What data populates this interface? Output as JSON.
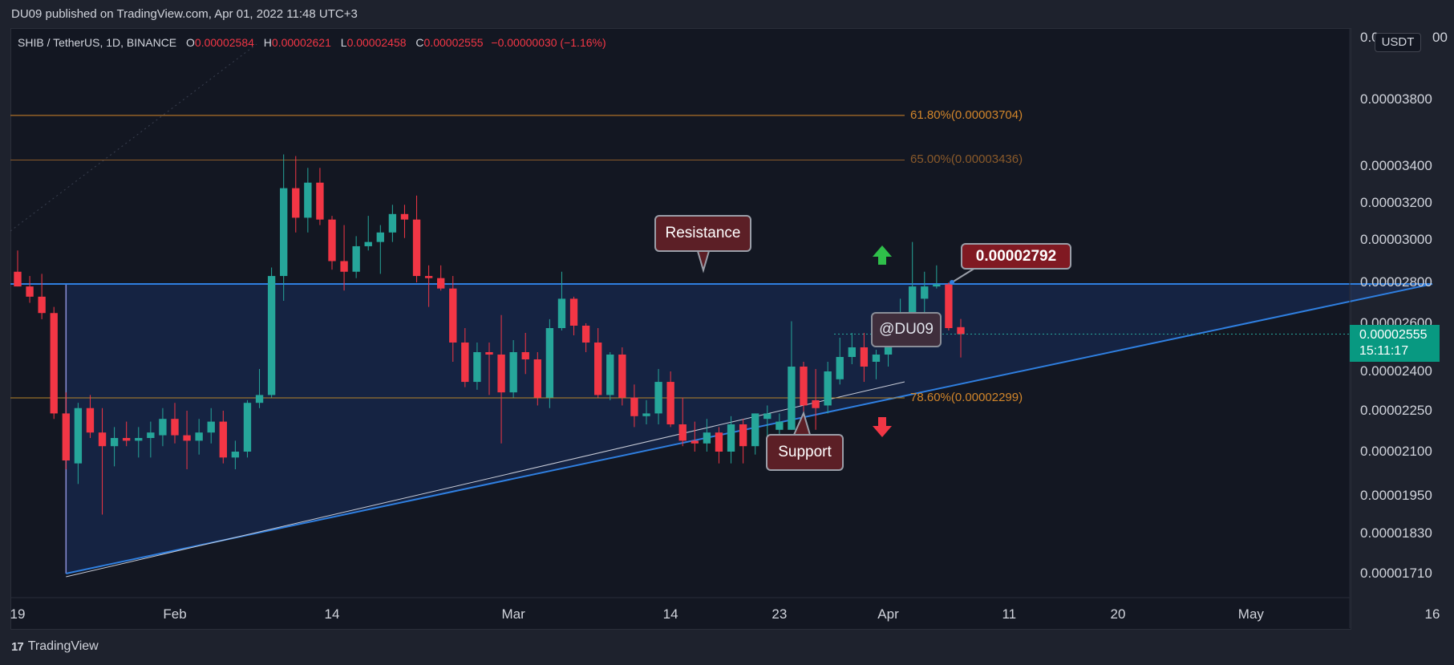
{
  "header": {
    "publisher": "DU09 published on TradingView.com, Apr 01, 2022 11:48 UTC+3"
  },
  "legend": {
    "symbol": "SHIB / TetherUS, 1D, BINANCE",
    "o_label": "O",
    "open": "0.00002584",
    "h_label": "H",
    "high": "0.00002621",
    "l_label": "L",
    "low": "0.00002458",
    "c_label": "C",
    "close": "0.00002555",
    "change": "−0.00000030 (−1.16%)"
  },
  "price_scale": {
    "currency": "USDT",
    "current_price": "0.00002555",
    "countdown": "15:11:17",
    "top_partial": "0.0",
    "top_partial_end": "00"
  },
  "annotations": {
    "resistance": "Resistance",
    "support": "Support",
    "level": "0.00002792",
    "watermark": "@DU09",
    "fib_618": "61.80%(0.00003704)",
    "fib_65": "65.00%(0.00003436)",
    "fib_786": "78.60%(0.00002299)"
  },
  "footer": {
    "brand": "TradingView"
  },
  "colors": {
    "up": "#26a69a",
    "down": "#f23645",
    "fib": "#d1852a",
    "trend": "#2962ff"
  },
  "chart_data": {
    "type": "candlestick",
    "title": "SHIB / TetherUS, 1D, BINANCE",
    "y_ticks": [
      3.8e-05,
      3.4e-05,
      3.2e-05,
      3e-05,
      2.8e-05,
      2.6e-05,
      2.4e-05,
      2.25e-05,
      2.1e-05,
      1.95e-05,
      1.83e-05,
      1.71e-05
    ],
    "y_tick_labels": [
      "0.00003800",
      "0.00003400",
      "0.00003200",
      "0.00003000",
      "0.00002800",
      "0.00002600",
      "0.00002400",
      "0.00002250",
      "0.00002100",
      "0.00001950",
      "0.00001830",
      "0.00001710"
    ],
    "x_ticks": [
      "19",
      "Feb",
      "14",
      "Mar",
      "14",
      "23",
      "Apr",
      "11",
      "20",
      "May",
      "16"
    ],
    "x_tick_dates": [
      "2022-01-19",
      "2022-02-01",
      "2022-02-14",
      "2022-03-01",
      "2022-03-14",
      "2022-03-23",
      "2022-04-01",
      "2022-04-11",
      "2022-04-20",
      "2022-05-01",
      "2022-05-16"
    ],
    "horizontal_levels": [
      {
        "label": "61.80%(0.00003704)",
        "value": 3.704e-05
      },
      {
        "label": "65.00%(0.00003436)",
        "value": 3.436e-05
      },
      {
        "label": "78.60%(0.00002299)",
        "value": 2.299e-05
      },
      {
        "label": "0.00002792",
        "value": 2.792e-05
      }
    ],
    "triangle": {
      "top": 2.792e-05,
      "start_date": "2022-01-23",
      "apex_date": "2022-05-16",
      "bottom_low": 1.71e-05
    },
    "candles": [
      {
        "date": "2022-01-19",
        "o": 2.85e-05,
        "h": 2.95e-05,
        "l": 2.78e-05,
        "c": 2.78e-05
      },
      {
        "date": "2022-01-20",
        "o": 2.78e-05,
        "h": 2.83e-05,
        "l": 2.7e-05,
        "c": 2.73e-05
      },
      {
        "date": "2022-01-21",
        "o": 2.73e-05,
        "h": 2.84e-05,
        "l": 2.62e-05,
        "c": 2.65e-05
      },
      {
        "date": "2022-01-22",
        "o": 2.65e-05,
        "h": 2.68e-05,
        "l": 2.22e-05,
        "c": 2.24e-05
      },
      {
        "date": "2022-01-23",
        "o": 2.24e-05,
        "h": 2.32e-05,
        "l": 2.04e-05,
        "c": 2.07e-05
      },
      {
        "date": "2022-01-24",
        "o": 2.06e-05,
        "h": 2.28e-05,
        "l": 1.99e-05,
        "c": 2.26e-05
      },
      {
        "date": "2022-01-25",
        "o": 2.26e-05,
        "h": 2.31e-05,
        "l": 2.15e-05,
        "c": 2.17e-05
      },
      {
        "date": "2022-01-26",
        "o": 2.17e-05,
        "h": 2.26e-05,
        "l": 1.89e-05,
        "c": 2.12e-05
      },
      {
        "date": "2022-01-27",
        "o": 2.12e-05,
        "h": 2.19e-05,
        "l": 2.05e-05,
        "c": 2.15e-05
      },
      {
        "date": "2022-01-28",
        "o": 2.15e-05,
        "h": 2.21e-05,
        "l": 2.12e-05,
        "c": 2.14e-05
      },
      {
        "date": "2022-01-29",
        "o": 2.14e-05,
        "h": 2.19e-05,
        "l": 2.08e-05,
        "c": 2.15e-05
      },
      {
        "date": "2022-01-30",
        "o": 2.15e-05,
        "h": 2.21e-05,
        "l": 2.08e-05,
        "c": 2.17e-05
      },
      {
        "date": "2022-01-31",
        "o": 2.16e-05,
        "h": 2.26e-05,
        "l": 2.12e-05,
        "c": 2.22e-05
      },
      {
        "date": "2022-02-01",
        "o": 2.22e-05,
        "h": 2.28e-05,
        "l": 2.13e-05,
        "c": 2.16e-05
      },
      {
        "date": "2022-02-02",
        "o": 2.16e-05,
        "h": 2.25e-05,
        "l": 2.04e-05,
        "c": 2.14e-05
      },
      {
        "date": "2022-02-03",
        "o": 2.14e-05,
        "h": 2.22e-05,
        "l": 2.09e-05,
        "c": 2.17e-05
      },
      {
        "date": "2022-02-04",
        "o": 2.17e-05,
        "h": 2.26e-05,
        "l": 2.13e-05,
        "c": 2.21e-05
      },
      {
        "date": "2022-02-05",
        "o": 2.21e-05,
        "h": 2.25e-05,
        "l": 2.06e-05,
        "c": 2.08e-05
      },
      {
        "date": "2022-02-06",
        "o": 2.08e-05,
        "h": 2.14e-05,
        "l": 2.04e-05,
        "c": 2.1e-05
      },
      {
        "date": "2022-02-07",
        "o": 2.1e-05,
        "h": 2.29e-05,
        "l": 2.08e-05,
        "c": 2.28e-05
      },
      {
        "date": "2022-02-08",
        "o": 2.28e-05,
        "h": 2.41e-05,
        "l": 2.26e-05,
        "c": 2.31e-05
      },
      {
        "date": "2022-02-09",
        "o": 2.31e-05,
        "h": 2.87e-05,
        "l": 2.3e-05,
        "c": 2.83e-05
      },
      {
        "date": "2022-02-10",
        "o": 2.83e-05,
        "h": 3.47e-05,
        "l": 2.71e-05,
        "c": 3.28e-05
      },
      {
        "date": "2022-02-11",
        "o": 3.28e-05,
        "h": 3.46e-05,
        "l": 3.04e-05,
        "c": 3.12e-05
      },
      {
        "date": "2022-02-12",
        "o": 3.12e-05,
        "h": 3.39e-05,
        "l": 3.04e-05,
        "c": 3.31e-05
      },
      {
        "date": "2022-02-13",
        "o": 3.31e-05,
        "h": 3.39e-05,
        "l": 3.08e-05,
        "c": 3.11e-05
      },
      {
        "date": "2022-02-14",
        "o": 3.11e-05,
        "h": 3.13e-05,
        "l": 2.86e-05,
        "c": 2.9e-05
      },
      {
        "date": "2022-02-15",
        "o": 2.9e-05,
        "h": 3.08e-05,
        "l": 2.76e-05,
        "c": 2.85e-05
      },
      {
        "date": "2022-02-16",
        "o": 2.85e-05,
        "h": 3.02e-05,
        "l": 2.82e-05,
        "c": 2.97e-05
      },
      {
        "date": "2022-02-17",
        "o": 2.97e-05,
        "h": 3.13e-05,
        "l": 2.95e-05,
        "c": 2.99e-05
      },
      {
        "date": "2022-02-18",
        "o": 2.99e-05,
        "h": 3.08e-05,
        "l": 2.84e-05,
        "c": 3.04e-05
      },
      {
        "date": "2022-02-19",
        "o": 3.04e-05,
        "h": 3.19e-05,
        "l": 2.99e-05,
        "c": 3.14e-05
      },
      {
        "date": "2022-02-20",
        "o": 3.14e-05,
        "h": 3.19e-05,
        "l": 3.01e-05,
        "c": 3.11e-05
      },
      {
        "date": "2022-02-21",
        "o": 3.11e-05,
        "h": 3.24e-05,
        "l": 2.8e-05,
        "c": 2.83e-05
      },
      {
        "date": "2022-02-22",
        "o": 2.83e-05,
        "h": 2.88e-05,
        "l": 2.68e-05,
        "c": 2.82e-05
      },
      {
        "date": "2022-02-23",
        "o": 2.82e-05,
        "h": 2.88e-05,
        "l": 2.76e-05,
        "c": 2.77e-05
      },
      {
        "date": "2022-02-24",
        "o": 2.77e-05,
        "h": 2.83e-05,
        "l": 2.44e-05,
        "c": 2.52e-05
      },
      {
        "date": "2022-02-25",
        "o": 2.52e-05,
        "h": 2.58e-05,
        "l": 2.34e-05,
        "c": 2.36e-05
      },
      {
        "date": "2022-02-26",
        "o": 2.36e-05,
        "h": 2.52e-05,
        "l": 2.33e-05,
        "c": 2.48e-05
      },
      {
        "date": "2022-02-27",
        "o": 2.48e-05,
        "h": 2.52e-05,
        "l": 2.31e-05,
        "c": 2.47e-05
      },
      {
        "date": "2022-02-28",
        "o": 2.47e-05,
        "h": 2.64e-05,
        "l": 2.13e-05,
        "c": 2.32e-05
      },
      {
        "date": "2022-03-01",
        "o": 2.32e-05,
        "h": 2.53e-05,
        "l": 2.3e-05,
        "c": 2.48e-05
      },
      {
        "date": "2022-03-02",
        "o": 2.48e-05,
        "h": 2.56e-05,
        "l": 2.39e-05,
        "c": 2.45e-05
      },
      {
        "date": "2022-03-03",
        "o": 2.45e-05,
        "h": 2.48e-05,
        "l": 2.27e-05,
        "c": 2.3e-05
      },
      {
        "date": "2022-03-04",
        "o": 2.3e-05,
        "h": 2.62e-05,
        "l": 2.26e-05,
        "c": 2.58e-05
      },
      {
        "date": "2022-03-05",
        "o": 2.58e-05,
        "h": 2.85e-05,
        "l": 2.57e-05,
        "c": 2.72e-05
      },
      {
        "date": "2022-03-06",
        "o": 2.72e-05,
        "h": 2.73e-05,
        "l": 2.55e-05,
        "c": 2.59e-05
      },
      {
        "date": "2022-03-07",
        "o": 2.59e-05,
        "h": 2.6e-05,
        "l": 2.48e-05,
        "c": 2.52e-05
      },
      {
        "date": "2022-03-08",
        "o": 2.52e-05,
        "h": 2.58e-05,
        "l": 2.3e-05,
        "c": 2.31e-05
      },
      {
        "date": "2022-03-09",
        "o": 2.31e-05,
        "h": 2.48e-05,
        "l": 2.29e-05,
        "c": 2.47e-05
      },
      {
        "date": "2022-03-10",
        "o": 2.47e-05,
        "h": 2.5e-05,
        "l": 2.27e-05,
        "c": 2.3e-05
      },
      {
        "date": "2022-03-11",
        "o": 2.3e-05,
        "h": 2.35e-05,
        "l": 2.19e-05,
        "c": 2.23e-05
      },
      {
        "date": "2022-03-12",
        "o": 2.23e-05,
        "h": 2.29e-05,
        "l": 2.2e-05,
        "c": 2.24e-05
      },
      {
        "date": "2022-03-13",
        "o": 2.24e-05,
        "h": 2.41e-05,
        "l": 2.2e-05,
        "c": 2.36e-05
      },
      {
        "date": "2022-03-14",
        "o": 2.36e-05,
        "h": 2.4e-05,
        "l": 2.19e-05,
        "c": 2.2e-05
      },
      {
        "date": "2022-03-15",
        "o": 2.2e-05,
        "h": 2.3e-05,
        "l": 2.12e-05,
        "c": 2.14e-05
      },
      {
        "date": "2022-03-16",
        "o": 2.14e-05,
        "h": 2.21e-05,
        "l": 2.1e-05,
        "c": 2.13e-05
      },
      {
        "date": "2022-03-17",
        "o": 2.13e-05,
        "h": 2.22e-05,
        "l": 2.1e-05,
        "c": 2.17e-05
      },
      {
        "date": "2022-03-18",
        "o": 2.17e-05,
        "h": 2.19e-05,
        "l": 2.06e-05,
        "c": 2.1e-05
      },
      {
        "date": "2022-03-19",
        "o": 2.1e-05,
        "h": 2.23e-05,
        "l": 2.06e-05,
        "c": 2.2e-05
      },
      {
        "date": "2022-03-20",
        "o": 2.2e-05,
        "h": 2.22e-05,
        "l": 2.06e-05,
        "c": 2.12e-05
      },
      {
        "date": "2022-03-21",
        "o": 2.12e-05,
        "h": 2.24e-05,
        "l": 2.09e-05,
        "c": 2.24e-05
      },
      {
        "date": "2022-03-22",
        "o": 2.22e-05,
        "h": 2.27e-05,
        "l": 2.14e-05,
        "c": 2.24e-05
      },
      {
        "date": "2022-03-23",
        "o": 2.18e-05,
        "h": 2.24e-05,
        "l": 2.11e-05,
        "c": 2.21e-05
      },
      {
        "date": "2022-03-24",
        "o": 2.18e-05,
        "h": 2.61e-05,
        "l": 2.18e-05,
        "c": 2.42e-05
      },
      {
        "date": "2022-03-25",
        "o": 2.42e-05,
        "h": 2.44e-05,
        "l": 2.23e-05,
        "c": 2.27e-05
      },
      {
        "date": "2022-03-26",
        "o": 2.29e-05,
        "h": 2.41e-05,
        "l": 2.18e-05,
        "c": 2.26e-05
      },
      {
        "date": "2022-03-27",
        "o": 2.27e-05,
        "h": 2.44e-05,
        "l": 2.24e-05,
        "c": 2.4e-05
      },
      {
        "date": "2022-03-28",
        "o": 2.37e-05,
        "h": 2.54e-05,
        "l": 2.35e-05,
        "c": 2.46e-05
      },
      {
        "date": "2022-03-29",
        "o": 2.46e-05,
        "h": 2.56e-05,
        "l": 2.43e-05,
        "c": 2.5e-05
      },
      {
        "date": "2022-03-30",
        "o": 2.5e-05,
        "h": 2.56e-05,
        "l": 2.36e-05,
        "c": 2.42e-05
      },
      {
        "date": "2022-03-31",
        "o": 2.44e-05,
        "h": 2.49e-05,
        "l": 2.37e-05,
        "c": 2.47e-05
      },
      {
        "date": "2022-04-01",
        "o": 2.47e-05,
        "h": 2.62e-05,
        "l": 2.42e-05,
        "c": 2.61e-05
      },
      {
        "date": "2022-04-02",
        "o": 2.61e-05,
        "h": 2.72e-05,
        "l": 2.6e-05,
        "c": 2.63e-05
      },
      {
        "date": "2022-04-03",
        "o": 2.63e-05,
        "h": 2.99e-05,
        "l": 2.59e-05,
        "c": 2.78e-05
      },
      {
        "date": "2022-04-04",
        "o": 2.72e-05,
        "h": 2.85e-05,
        "l": 2.62e-05,
        "c": 2.78e-05
      },
      {
        "date": "2022-04-05",
        "o": 2.78e-05,
        "h": 2.88e-05,
        "l": 2.77e-05,
        "c": 2.79e-05
      },
      {
        "date": "2022-04-06",
        "o": 2.79e-05,
        "h": 2.8e-05,
        "l": 2.57e-05,
        "c": 2.58e-05
      },
      {
        "date": "2022-04-07",
        "o": 2.584e-05,
        "h": 2.621e-05,
        "l": 2.458e-05,
        "c": 2.555e-05
      }
    ]
  }
}
